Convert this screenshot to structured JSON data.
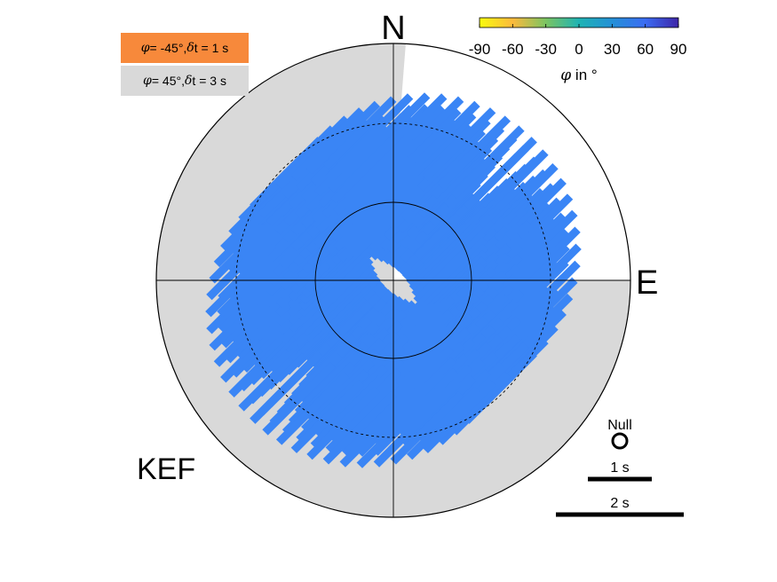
{
  "chart_data": {
    "type": "polar-splitting",
    "station": "KEF",
    "directions": {
      "north": "N",
      "east": "E"
    },
    "colorbar": {
      "ticks": [
        "-90",
        "-60",
        "-30",
        "0",
        "30",
        "60",
        "90"
      ],
      "range": [
        -90,
        90
      ],
      "label_symbol": "φ",
      "label_text": " in °",
      "colors": [
        "#f9fb0e",
        "#fcba3d",
        "#7bc462",
        "#1fb3b3",
        "#2490d7",
        "#3b6cf3",
        "#3e26a8"
      ]
    },
    "legend": [
      {
        "sym1": "φ",
        "val1": " = -45°, ",
        "sym2": "δ",
        "val2": "t = 1 s",
        "color": "#f7893b"
      },
      {
        "sym1": "φ",
        "val1": " = 45°, ",
        "sym2": "δ",
        "val2": "t = 3 s",
        "color": "#d9d9d9"
      }
    ],
    "null_label": "Null",
    "scale_bars": [
      {
        "label": "1 s",
        "seconds": 1
      },
      {
        "label": "2 s",
        "seconds": 2
      }
    ],
    "bar_color": "#3a85f5",
    "bar_phi_deg": 45,
    "bar_delay_s": 3,
    "bar_backazimuth_range_deg": [
      0,
      360
    ],
    "bar_incidence_range_deg": [
      5,
      15
    ],
    "gray_sector_backazimuth_deg": [
      90,
      360
    ],
    "inner_circle_incidence_deg": 5,
    "dashed_circle_incidence_deg": 15
  }
}
